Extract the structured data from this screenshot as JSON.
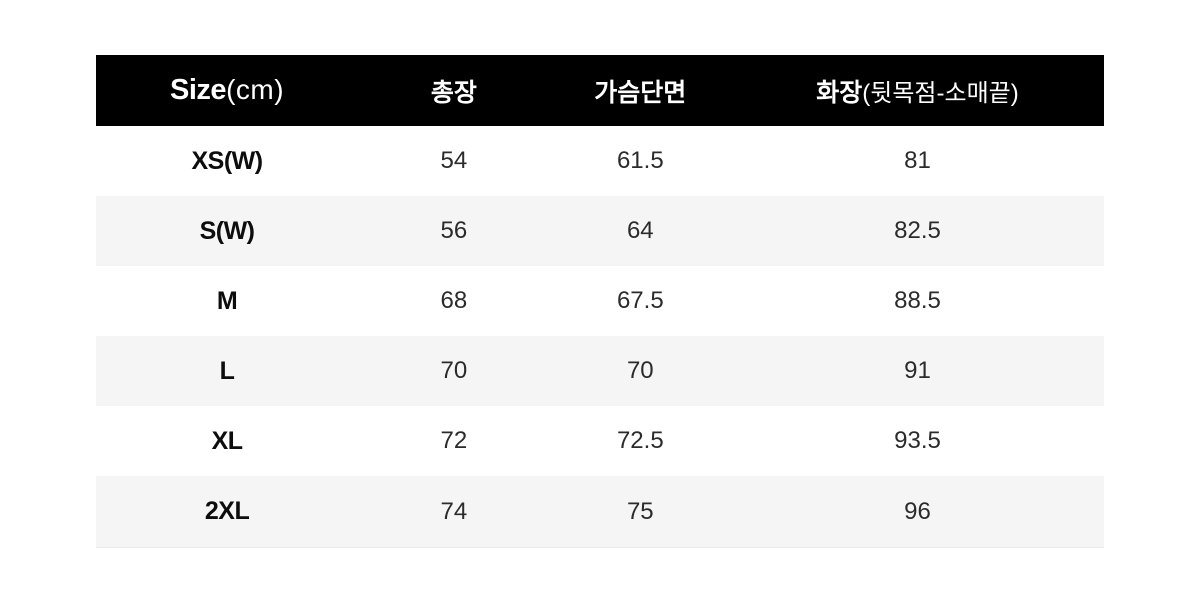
{
  "header": {
    "size_label": "Size",
    "size_unit": "(cm)",
    "col_total_length": "총장",
    "col_chest": "가슴단면",
    "col_sleeve": "화장",
    "col_sleeve_sub": "(뒷목점-소매끝)"
  },
  "table": {
    "rows": [
      {
        "size": "XS(W)",
        "values": [
          "54",
          "61.5",
          "81"
        ]
      },
      {
        "size": "S(W)",
        "values": [
          "56",
          "64",
          "82.5"
        ]
      },
      {
        "size": "M",
        "values": [
          "68",
          "67.5",
          "88.5"
        ]
      },
      {
        "size": "L",
        "values": [
          "70",
          "70",
          "91"
        ]
      },
      {
        "size": "XL",
        "values": [
          "72",
          "72.5",
          "93.5"
        ]
      },
      {
        "size": "2XL",
        "values": [
          "74",
          "75",
          "96"
        ]
      }
    ]
  },
  "colors": {
    "header_bg": "#000000",
    "header_text": "#ffffff",
    "row_alt_bg": "#f5f5f5",
    "body_text": "#2b2b2b",
    "page_bg": "#ffffff"
  },
  "chart_data": {
    "type": "table",
    "title": "Size(cm)",
    "columns": [
      "Size(cm)",
      "총장",
      "가슴단면",
      "화장(뒷목점-소매끝)"
    ],
    "rows": [
      [
        "XS(W)",
        54,
        61.5,
        81
      ],
      [
        "S(W)",
        56,
        64,
        82.5
      ],
      [
        "M",
        68,
        67.5,
        88.5
      ],
      [
        "L",
        70,
        70,
        91
      ],
      [
        "XL",
        72,
        72.5,
        93.5
      ],
      [
        "2XL",
        74,
        75,
        96
      ]
    ]
  }
}
